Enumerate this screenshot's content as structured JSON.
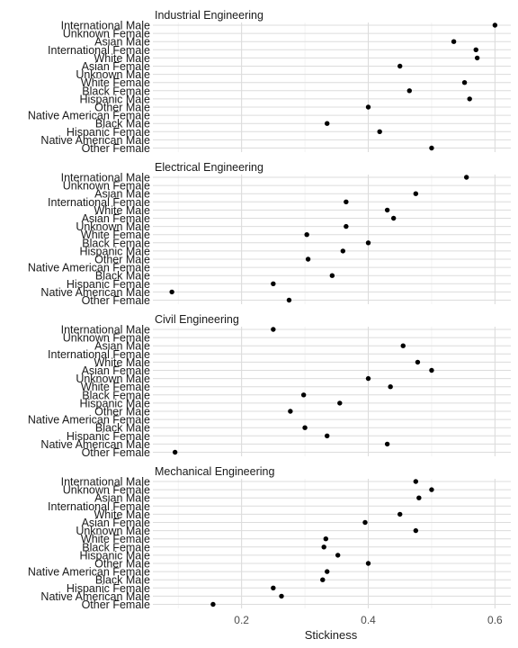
{
  "chart_data": {
    "type": "scatter",
    "xlabel": "Stickiness",
    "xlim": [
      0.06,
      0.625
    ],
    "xticks": [
      0.2,
      0.4,
      0.6
    ],
    "xtick_labels": [
      "0.2",
      "0.4",
      "0.6"
    ],
    "grid": true,
    "categories": [
      "International Male",
      "Unknown Female",
      "Asian Male",
      "International Female",
      "White Male",
      "Asian Female",
      "Unknown Male",
      "White Female",
      "Black Female",
      "Hispanic Male",
      "Other Male",
      "Native American Female",
      "Black Male",
      "Hispanic Female",
      "Native American Male",
      "Other Female"
    ],
    "panels": [
      {
        "title": "Industrial Engineering",
        "values": [
          0.6,
          null,
          0.535,
          0.57,
          0.572,
          0.45,
          null,
          0.552,
          0.465,
          0.56,
          0.4,
          null,
          0.335,
          0.418,
          null,
          0.5
        ]
      },
      {
        "title": "Electrical Engineering",
        "values": [
          0.555,
          null,
          0.475,
          0.365,
          0.43,
          0.44,
          0.365,
          0.303,
          0.4,
          0.36,
          0.305,
          null,
          0.343,
          0.25,
          0.09,
          0.275
        ]
      },
      {
        "title": "Civil Engineering",
        "values": [
          0.25,
          null,
          0.455,
          null,
          0.478,
          0.5,
          0.4,
          0.435,
          0.298,
          0.355,
          0.277,
          null,
          0.3,
          0.335,
          0.43,
          0.095
        ]
      },
      {
        "title": "Mechanical Engineering",
        "values": [
          0.475,
          0.5,
          0.48,
          null,
          0.45,
          0.395,
          0.475,
          0.333,
          0.33,
          0.352,
          0.4,
          0.335,
          0.328,
          0.25,
          0.263,
          0.155
        ]
      }
    ]
  }
}
